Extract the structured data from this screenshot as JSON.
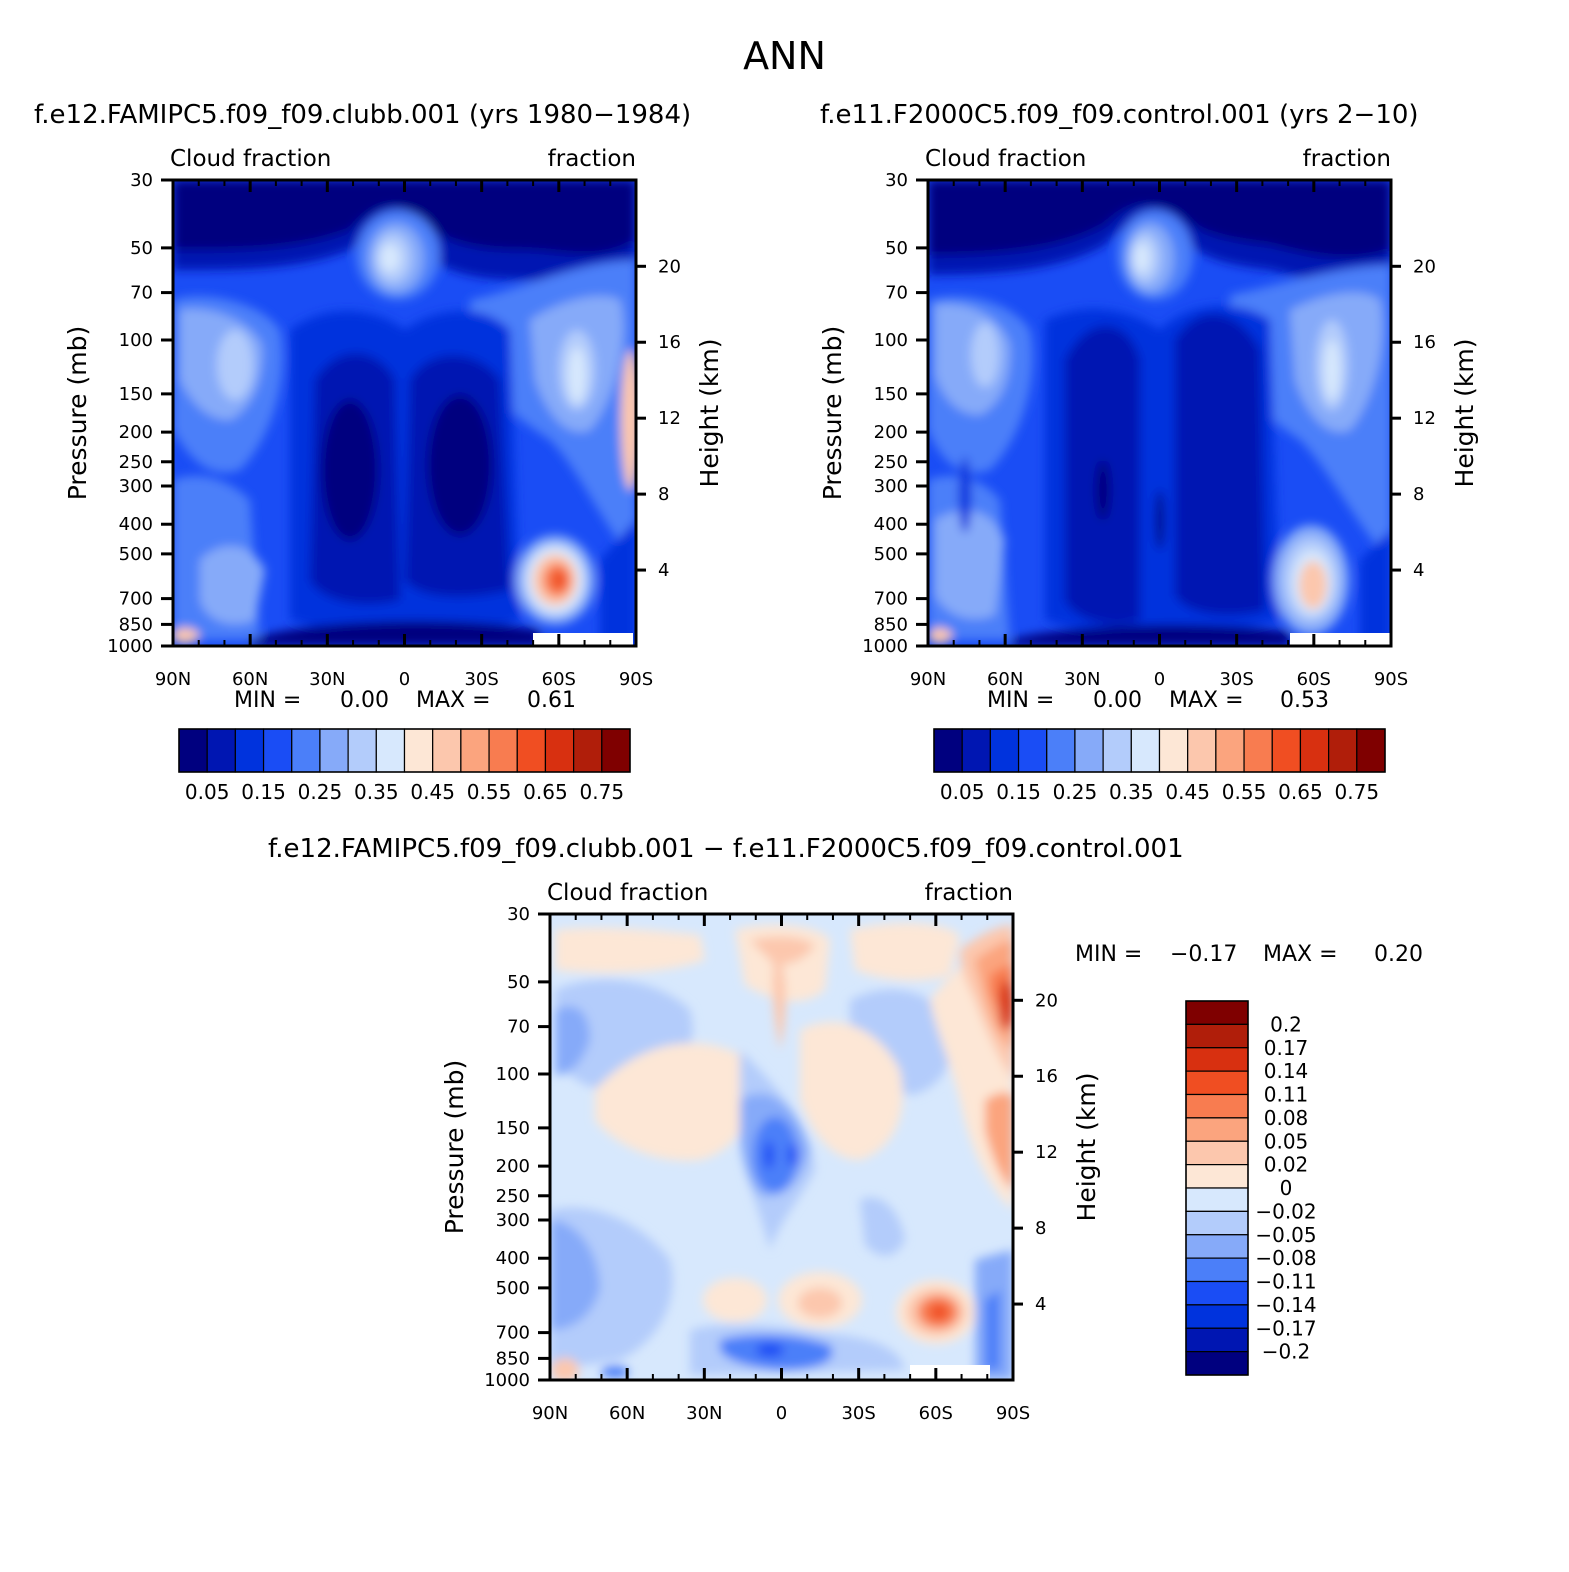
{
  "page": {
    "main_title": "ANN"
  },
  "chart_data": [
    {
      "type": "heatmap",
      "panel": "top-left",
      "title": "f.e12.FAMIPC5.f09_f09.clubb.001 (yrs 1980−1984)",
      "left_label": "Cloud fraction",
      "right_label": "fraction",
      "xlabel": "",
      "ylabel": "Pressure (mb)",
      "ylabel_right": "Height (km)",
      "x_ticks": [
        "90N",
        "60N",
        "30N",
        "0",
        "30S",
        "60S",
        "90S"
      ],
      "y_ticks": [
        "30",
        "50",
        "70",
        "100",
        "150",
        "200",
        "250",
        "300",
        "400",
        "500",
        "700",
        "850",
        "1000"
      ],
      "y2_ticks": [
        "20",
        "16",
        "12",
        "8",
        "4"
      ],
      "min_label": "MIN =",
      "min_value": "0.00",
      "max_label": "MAX =",
      "max_value": "0.61",
      "colorbar_labels": [
        "0.05",
        "0.15",
        "0.25",
        "0.35",
        "0.45",
        "0.55",
        "0.65",
        "0.75"
      ]
    },
    {
      "type": "heatmap",
      "panel": "top-right",
      "title": "f.e11.F2000C5.f09_f09.control.001 (yrs 2−10)",
      "left_label": "Cloud fraction",
      "right_label": "fraction",
      "xlabel": "",
      "ylabel": "Pressure (mb)",
      "ylabel_right": "Height (km)",
      "x_ticks": [
        "90N",
        "60N",
        "30N",
        "0",
        "30S",
        "60S",
        "90S"
      ],
      "y_ticks": [
        "30",
        "50",
        "70",
        "100",
        "150",
        "200",
        "250",
        "300",
        "400",
        "500",
        "700",
        "850",
        "1000"
      ],
      "y2_ticks": [
        "20",
        "16",
        "12",
        "8",
        "4"
      ],
      "min_label": "MIN =",
      "min_value": "0.00",
      "max_label": "MAX =",
      "max_value": "0.53",
      "colorbar_labels": [
        "0.05",
        "0.15",
        "0.25",
        "0.35",
        "0.45",
        "0.55",
        "0.65",
        "0.75"
      ]
    },
    {
      "type": "heatmap",
      "panel": "bottom",
      "title": "f.e12.FAMIPC5.f09_f09.clubb.001 − f.e11.F2000C5.f09_f09.control.001",
      "left_label": "Cloud fraction",
      "right_label": "fraction",
      "xlabel": "",
      "ylabel": "Pressure (mb)",
      "ylabel_right": "Height (km)",
      "x_ticks": [
        "90N",
        "60N",
        "30N",
        "0",
        "30S",
        "60S",
        "90S"
      ],
      "y_ticks": [
        "30",
        "50",
        "70",
        "100",
        "150",
        "200",
        "250",
        "300",
        "400",
        "500",
        "700",
        "850",
        "1000"
      ],
      "y2_ticks": [
        "20",
        "16",
        "12",
        "8",
        "4"
      ],
      "min_label": "MIN =",
      "min_value": "−0.17",
      "max_label": "MAX =",
      "max_value": "0.20",
      "colorbar_labels": [
        "0.2",
        "0.17",
        "0.14",
        "0.11",
        "0.08",
        "0.05",
        "0.02",
        "0",
        "−0.02",
        "−0.05",
        "−0.08",
        "−0.11",
        "−0.14",
        "−0.17",
        "−0.2"
      ]
    }
  ],
  "palettes": {
    "sequential": [
      "#00007f",
      "#0016b2",
      "#0033dd",
      "#1a4df5",
      "#4b7ff9",
      "#86aaf9",
      "#b3ccfb",
      "#d7e8fd",
      "#fde7d6",
      "#fcc7ad",
      "#fba47e",
      "#f87c50",
      "#f04e22",
      "#d83010",
      "#b01e0a",
      "#7f0000"
    ],
    "diverging": [
      "#00007f",
      "#0016b2",
      "#0033dd",
      "#1a4df5",
      "#4b7ff9",
      "#86aaf9",
      "#b3ccfb",
      "#d7e8fd",
      "#fde7d6",
      "#fcc7ad",
      "#fba47e",
      "#f87c50",
      "#f04e22",
      "#d83010",
      "#b01e0a",
      "#7f0000"
    ]
  }
}
